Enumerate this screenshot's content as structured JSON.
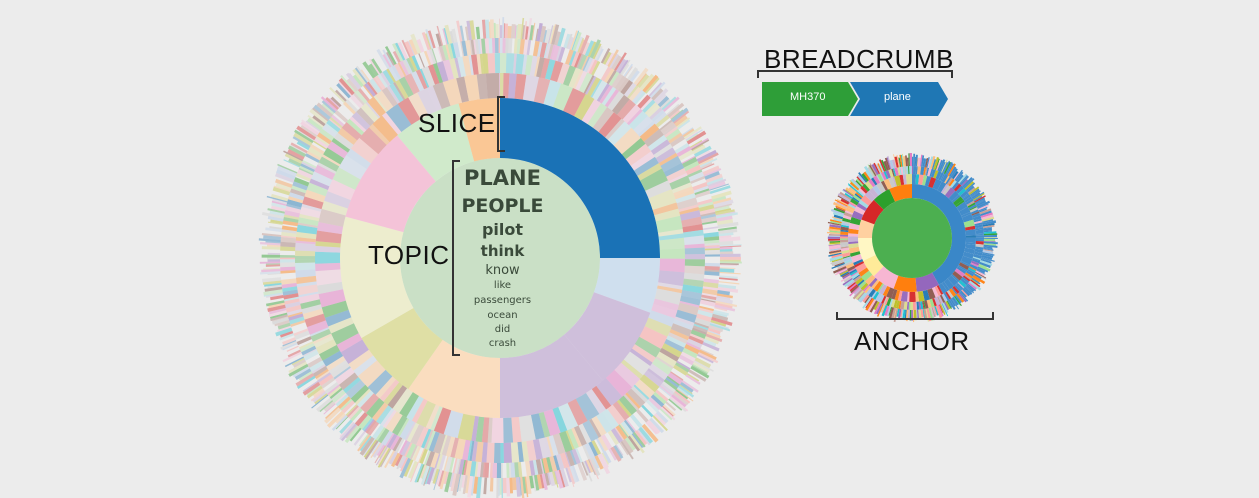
{
  "labels": {
    "slice": "SLICE",
    "topic": "TOPIC",
    "breadcrumb": "BREADCRUMB",
    "anchor": "ANCHOR"
  },
  "breadcrumb": {
    "items": [
      {
        "label": "MH370",
        "color": "#2e9e38"
      },
      {
        "label": "plane",
        "color": "#1f77b4"
      }
    ]
  },
  "topic_words": [
    "PLANE",
    "PEOPLE",
    "pilot",
    "think",
    "know",
    "like",
    "passengers",
    "ocean",
    "did",
    "crash"
  ],
  "colors": {
    "selected_slice": "#1a72b6",
    "center_fill": "#c8dfc4",
    "anchor_center": "#4caf50",
    "anchor_blue": "#3a87c8"
  }
}
